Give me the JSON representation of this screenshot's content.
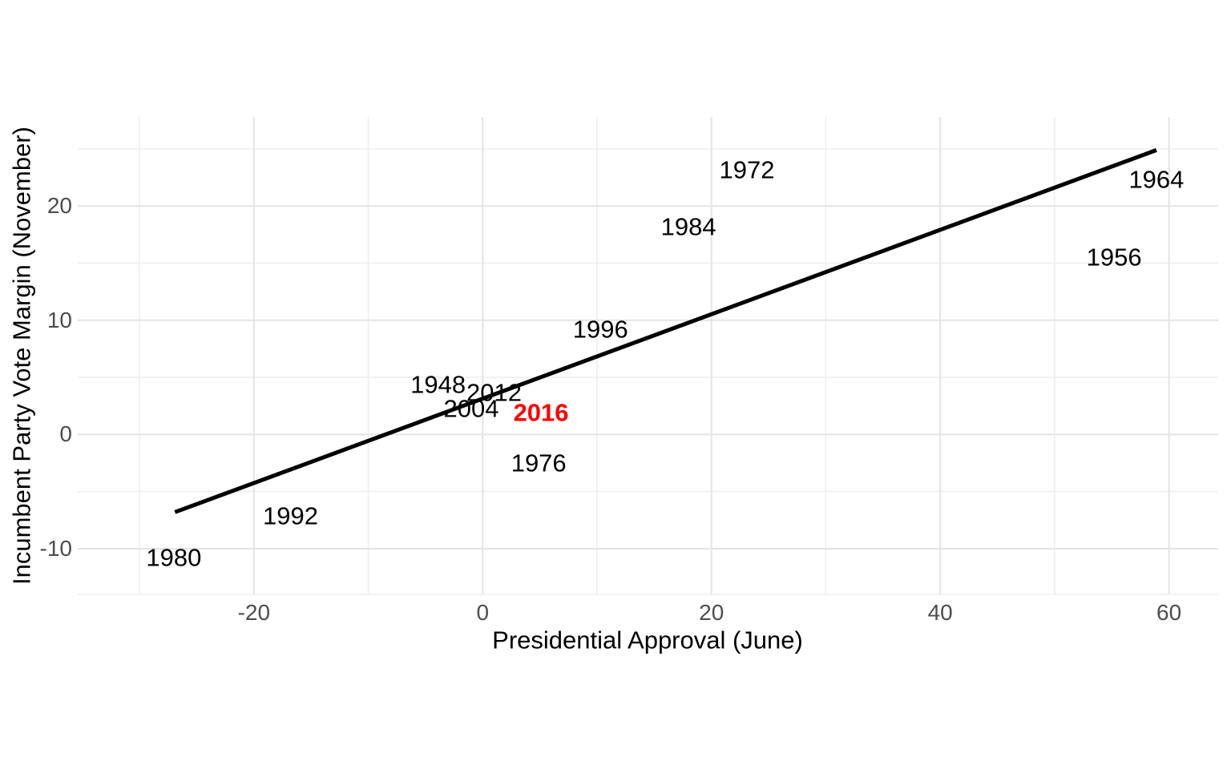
{
  "figure": {
    "x_axis_title": "Presidential Approval (June)",
    "y_axis_title": "Incumbent Party Vote Margin (November)",
    "colors": {
      "background": "#FFFFFF",
      "axis_title": "#000000",
      "tick_label": "#4D4D4D",
      "grid_major": "#E4E4E4",
      "grid_minor": "#EEEEEE",
      "trend_line": "#000000",
      "point_label": "#000000",
      "highlight_label": "#FF0000"
    }
  },
  "chart_data": {
    "type": "scatter",
    "point_geom": "text-year-labels",
    "title": "",
    "xlabel": "Presidential Approval (June)",
    "ylabel": "Incumbent Party Vote Margin (November)",
    "xlim": [
      -35.4,
      64.3
    ],
    "ylim": [
      -14.0,
      27.8
    ],
    "grid": "major+minor",
    "legend": "none",
    "x_ticks": {
      "major": [
        -20,
        0,
        20,
        40,
        60
      ],
      "minor": [
        -30,
        -10,
        10,
        30,
        50
      ]
    },
    "y_ticks": {
      "major": [
        -10,
        0,
        10,
        20
      ],
      "minor": [
        -5,
        5,
        15,
        25
      ]
    },
    "points": [
      {
        "label": "1948",
        "x": -3.9,
        "y": 4.4,
        "highlight": false
      },
      {
        "label": "1956",
        "x": 55.2,
        "y": 15.5,
        "highlight": false
      },
      {
        "label": "1964",
        "x": 58.9,
        "y": 22.3,
        "highlight": false
      },
      {
        "label": "1972",
        "x": 23.1,
        "y": 23.2,
        "highlight": false
      },
      {
        "label": "1976",
        "x": 4.9,
        "y": -2.5,
        "highlight": false
      },
      {
        "label": "1980",
        "x": -27.0,
        "y": -10.8,
        "highlight": false
      },
      {
        "label": "1984",
        "x": 18.0,
        "y": 18.2,
        "highlight": false
      },
      {
        "label": "1992",
        "x": -16.8,
        "y": -7.1,
        "highlight": false
      },
      {
        "label": "1996",
        "x": 10.3,
        "y": 9.2,
        "highlight": false
      },
      {
        "label": "2004",
        "x": -1.0,
        "y": 2.3,
        "highlight": false
      },
      {
        "label": "2012",
        "x": 1.0,
        "y": 3.7,
        "highlight": false
      },
      {
        "label": "2016",
        "x": 5.1,
        "y": 1.9,
        "highlight": true
      }
    ],
    "trend_line": {
      "x1": -26.9,
      "y1": -6.8,
      "x2": 58.9,
      "y2": 24.9
    }
  }
}
